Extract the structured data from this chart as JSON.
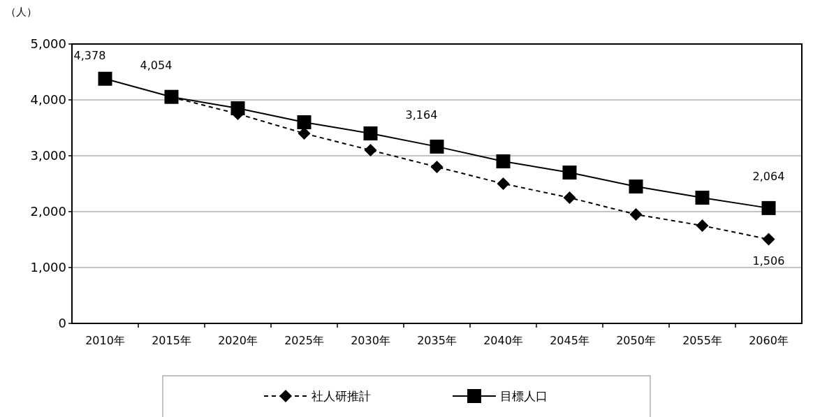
{
  "chart_data": {
    "type": "line",
    "ylabel": "（人）",
    "categories": [
      "2010年",
      "2015年",
      "2020年",
      "2025年",
      "2030年",
      "2035年",
      "2040年",
      "2045年",
      "2050年",
      "2055年",
      "2060年"
    ],
    "series": [
      {
        "name": "社人研推計",
        "color": "#000000",
        "marker": "diamond",
        "line_style": "dashed",
        "values": [
          null,
          4050,
          3750,
          3400,
          3100,
          2800,
          2500,
          2250,
          1950,
          1750,
          1506
        ],
        "value_labels": [
          null,
          null,
          null,
          null,
          null,
          null,
          null,
          null,
          null,
          null,
          "1,506"
        ]
      },
      {
        "name": "目標人口",
        "color": "#000000",
        "marker": "square",
        "line_style": "solid",
        "values": [
          4378,
          4054,
          3850,
          3600,
          3400,
          3164,
          2900,
          2700,
          2450,
          2250,
          2064
        ],
        "value_labels": [
          "4,378",
          "4,054",
          null,
          null,
          null,
          "3,164",
          null,
          null,
          null,
          null,
          "2,064"
        ]
      }
    ],
    "ylim": [
      0,
      5000
    ],
    "yticks": [
      {
        "value": 0,
        "label": "0"
      },
      {
        "value": 1000,
        "label": "1,000"
      },
      {
        "value": 2000,
        "label": "2,000"
      },
      {
        "value": 3000,
        "label": "3,000"
      },
      {
        "value": 4000,
        "label": "4,000"
      },
      {
        "value": 5000,
        "label": "5,000"
      }
    ],
    "grid": "y",
    "legend": "bottom"
  }
}
